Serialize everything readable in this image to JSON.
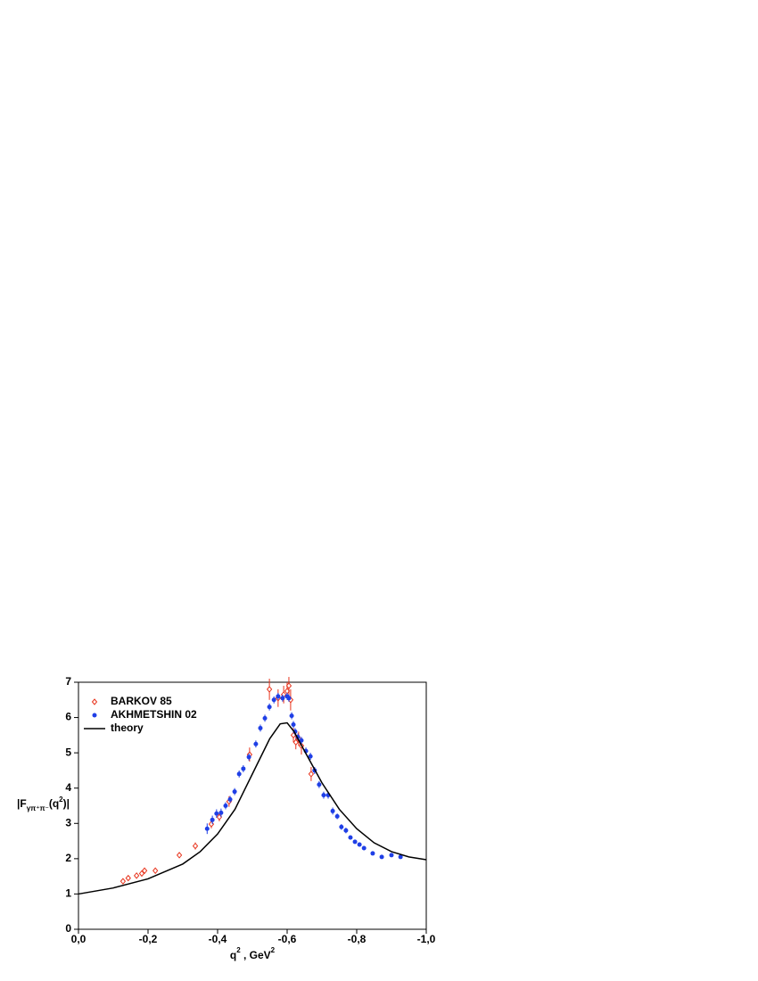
{
  "chart_data": {
    "type": "scatter",
    "x_label": {
      "main": "q",
      "sup": "2",
      "unit": " , GeV",
      "unit_sup": "2"
    },
    "y_label": {
      "open": "|F",
      "sub": "γπ⁺π⁻",
      "mid": "(q",
      "sup": "2",
      "close": ")|"
    },
    "xlim": [
      0,
      -1.0
    ],
    "ylim": [
      0,
      7
    ],
    "xticks": [
      {
        "value": 0,
        "label": "0,0"
      },
      {
        "value": -0.2,
        "label": "-0,2"
      },
      {
        "value": -0.4,
        "label": "-0,4"
      },
      {
        "value": -0.6,
        "label": "-0,6"
      },
      {
        "value": -0.8,
        "label": "-0,8"
      },
      {
        "value": -1.0,
        "label": "-1,0"
      }
    ],
    "yticks": [
      0,
      1,
      2,
      3,
      4,
      5,
      6,
      7
    ],
    "legend": "top-left",
    "series": [
      {
        "name": "BARKOV  85",
        "color": "#e8331c",
        "marker": "open-diamond",
        "x": [
          -0.128,
          -0.143,
          -0.167,
          -0.182,
          -0.19,
          -0.221,
          -0.29,
          -0.336,
          -0.382,
          -0.405,
          -0.433,
          -0.492,
          -0.549,
          -0.574,
          -0.59,
          -0.6,
          -0.605,
          -0.61,
          -0.618,
          -0.625,
          -0.633,
          -0.641,
          -0.669
        ],
        "values": [
          1.36,
          1.45,
          1.52,
          1.58,
          1.66,
          1.66,
          2.1,
          2.36,
          2.98,
          3.18,
          3.62,
          4.95,
          6.8,
          6.55,
          6.65,
          6.75,
          6.9,
          6.5,
          5.5,
          5.3,
          5.4,
          5.2,
          4.4
        ],
        "errors": [
          0.05,
          0.05,
          0.05,
          0.06,
          0.06,
          0.06,
          0.08,
          0.1,
          0.12,
          0.12,
          0.15,
          0.2,
          0.3,
          0.25,
          0.25,
          0.25,
          0.25,
          0.3,
          0.2,
          0.2,
          0.2,
          0.25,
          0.2
        ]
      },
      {
        "name": "AKHMETSHIN 02",
        "color": "#1f3fe6",
        "marker": "filled-circle",
        "x": [
          -0.37,
          -0.385,
          -0.397,
          -0.41,
          -0.423,
          -0.436,
          -0.449,
          -0.462,
          -0.474,
          -0.49,
          -0.51,
          -0.523,
          -0.536,
          -0.549,
          -0.562,
          -0.574,
          -0.587,
          -0.6,
          -0.605,
          -0.613,
          -0.618,
          -0.623,
          -0.631,
          -0.641,
          -0.654,
          -0.667,
          -0.679,
          -0.692,
          -0.705,
          -0.718,
          -0.731,
          -0.744,
          -0.756,
          -0.769,
          -0.782,
          -0.795,
          -0.808,
          -0.821,
          -0.846,
          -0.872,
          -0.9,
          -0.926
        ],
        "values": [
          2.85,
          3.1,
          3.28,
          3.3,
          3.5,
          3.68,
          3.9,
          4.4,
          4.55,
          4.88,
          5.25,
          5.7,
          5.98,
          6.3,
          6.5,
          6.6,
          6.55,
          6.6,
          6.55,
          6.05,
          5.8,
          5.6,
          5.45,
          5.35,
          5.05,
          4.9,
          4.5,
          4.1,
          3.8,
          3.8,
          3.35,
          3.2,
          2.9,
          2.8,
          2.6,
          2.48,
          2.4,
          2.3,
          2.15,
          2.05,
          2.1,
          2.05
        ],
        "errors": [
          0.15,
          0.12,
          0.12,
          0.12,
          0.1,
          0.1,
          0.1,
          0.1,
          0.1,
          0.1,
          0.1,
          0.1,
          0.1,
          0.1,
          0.1,
          0.1,
          0.1,
          0.1,
          0.1,
          0.1,
          0.1,
          0.1,
          0.1,
          0.1,
          0.1,
          0.1,
          0.1,
          0.1,
          0.1,
          0.1,
          0.1,
          0.08,
          0.08,
          0.08,
          0.06,
          0.06,
          0.06,
          0.06,
          0.05,
          0.05,
          0.05,
          0.05
        ]
      },
      {
        "name": "theory",
        "color": "#000000",
        "marker": "line",
        "x": [
          0,
          -0.1,
          -0.2,
          -0.3,
          -0.35,
          -0.4,
          -0.45,
          -0.5,
          -0.55,
          -0.58,
          -0.6,
          -0.62,
          -0.65,
          -0.7,
          -0.75,
          -0.8,
          -0.85,
          -0.9,
          -0.95,
          -1.0
        ],
        "values": [
          1.0,
          1.17,
          1.43,
          1.85,
          2.2,
          2.7,
          3.4,
          4.4,
          5.4,
          5.82,
          5.85,
          5.6,
          5.05,
          4.15,
          3.4,
          2.85,
          2.45,
          2.2,
          2.05,
          1.97
        ]
      }
    ]
  }
}
